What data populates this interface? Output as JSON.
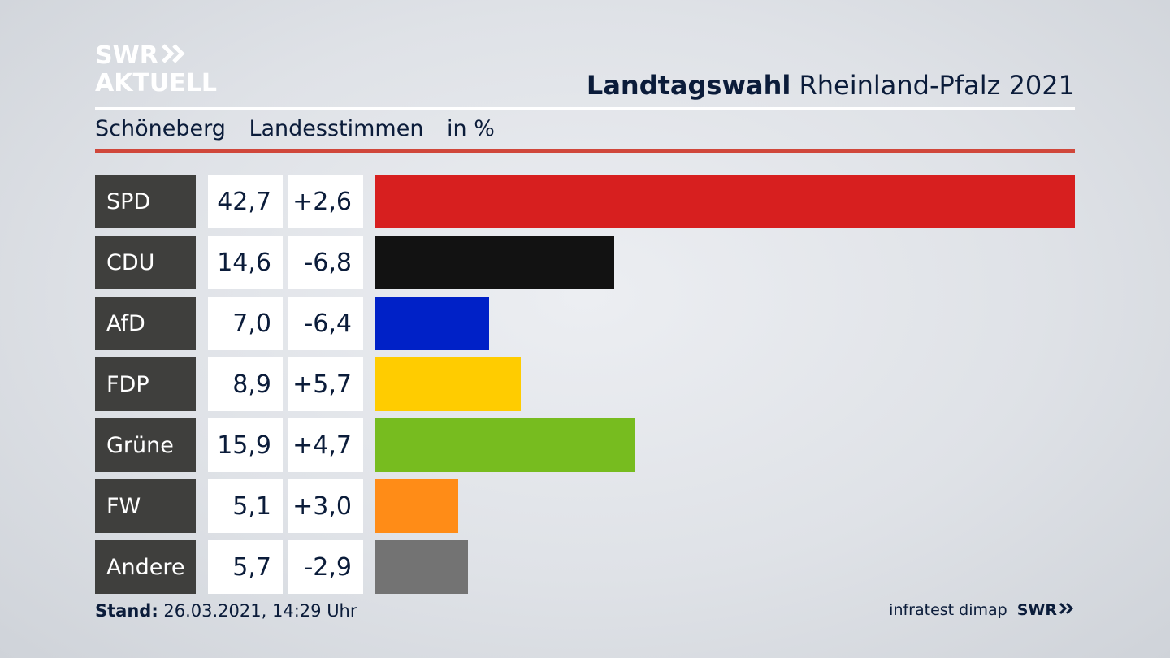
{
  "logo": {
    "line1": "SWR",
    "line2": "AKTUELL",
    "chevron_icon": "double-chevron-right-icon"
  },
  "header": {
    "title_bold": "Landtagswahl",
    "title_rest": "Rheinland-Pfalz 2021"
  },
  "subheader": {
    "district": "Schöneberg",
    "vote_type": "Landesstimmen",
    "unit": "in %"
  },
  "colors": {
    "SPD": "#d71f1f",
    "CDU": "#121212",
    "AfD": "#0021c7",
    "FDP": "#ffcc00",
    "Grüne": "#77bc1f",
    "FW": "#ff8c17",
    "Andere": "#737373",
    "accent_rule": "#d0473b"
  },
  "chart_data": {
    "type": "bar",
    "orientation": "horizontal",
    "categories": [
      "SPD",
      "CDU",
      "AfD",
      "FDP",
      "Grüne",
      "FW",
      "Andere"
    ],
    "values": [
      42.7,
      14.6,
      7.0,
      8.9,
      15.9,
      5.1,
      5.7
    ],
    "value_labels": [
      "42,7",
      "14,6",
      "7,0",
      "8,9",
      "15,9",
      "5,1",
      "5,7"
    ],
    "diff_labels": [
      "+2,6",
      "-6,8",
      "-6,4",
      "+5,7",
      "+4,7",
      "+3,0",
      "-2,9"
    ],
    "diffs": [
      2.6,
      -6.8,
      -6.4,
      5.7,
      4.7,
      3.0,
      -2.9
    ],
    "xlim": [
      0,
      42.7
    ]
  },
  "footer": {
    "stand_label": "Stand:",
    "stand_value": "26.03.2021, 14:29 Uhr",
    "source": "infratest dimap",
    "brand": "SWR"
  }
}
